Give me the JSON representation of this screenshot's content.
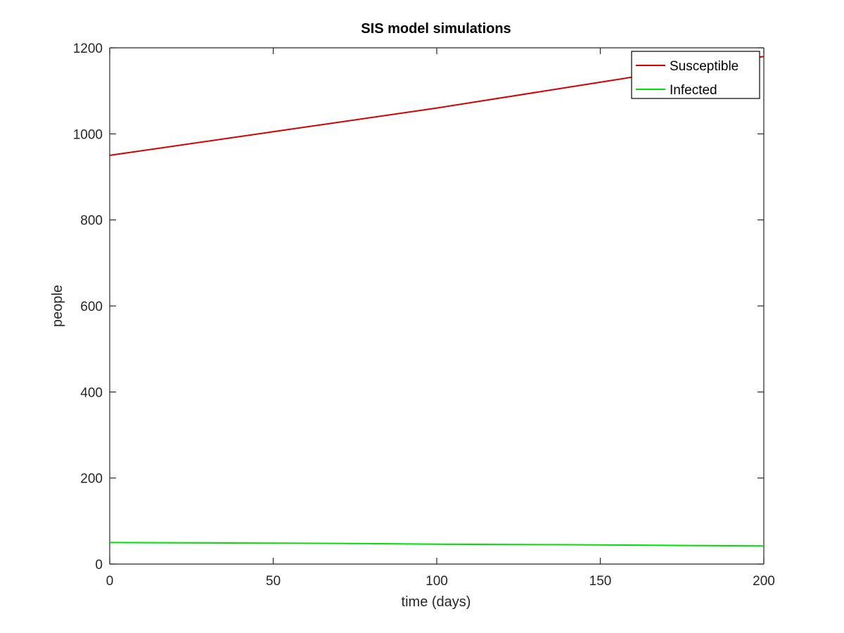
{
  "chart_data": {
    "type": "line",
    "title": "SIS model simulations",
    "xlabel": "time (days)",
    "ylabel": "people",
    "xlim": [
      0,
      200
    ],
    "ylim": [
      0,
      1200
    ],
    "xticks": [
      0,
      50,
      100,
      150,
      200
    ],
    "yticks": [
      0,
      200,
      400,
      600,
      800,
      1000,
      1200
    ],
    "grid": false,
    "legend_position": "top-right",
    "series": [
      {
        "name": "Susceptible",
        "color": "#d40000",
        "x": [
          0,
          50,
          100,
          150,
          200
        ],
        "y": [
          950,
          1005,
          1060,
          1120,
          1180
        ]
      },
      {
        "name": "Infected",
        "color": "#00e000",
        "x": [
          0,
          35,
          70,
          105,
          140,
          180,
          200
        ],
        "y": [
          50,
          49,
          48,
          46,
          45,
          43,
          42
        ]
      }
    ]
  }
}
